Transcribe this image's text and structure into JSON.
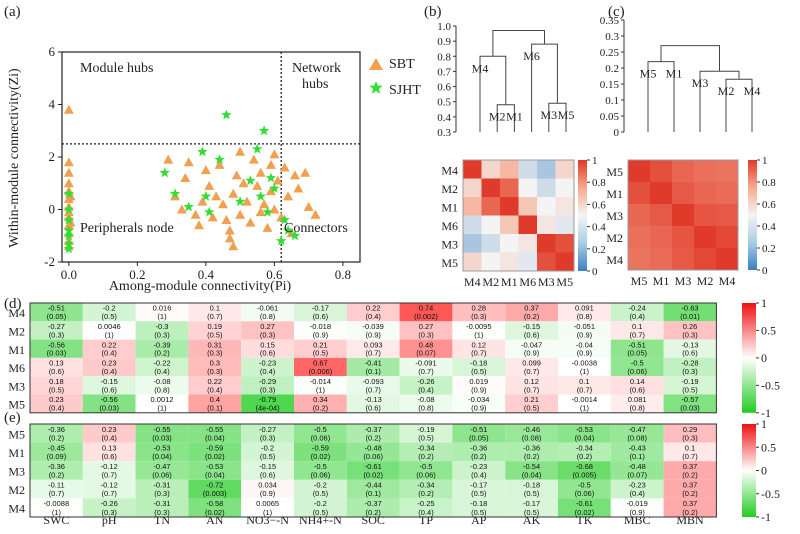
{
  "colors": {
    "sbt": "#f0a050",
    "sjht": "#33dd33",
    "line": "#222"
  },
  "icons": {
    "sbt": "triangle-marker",
    "sjht": "star-marker"
  },
  "chart_data": [
    {
      "panel": "(a)",
      "type": "scatter",
      "xlabel": "Among-module connectivity(Pi)",
      "ylabel": "Within-module connectivity(Zi)",
      "xlim": [
        -0.02,
        0.85
      ],
      "ylim": [
        -2.0,
        6.0
      ],
      "xticks": [
        "0.0",
        "0.2",
        "0.4",
        "0.6",
        "0.8"
      ],
      "yticks": [
        "-2",
        "0",
        "2",
        "4",
        "6"
      ],
      "thresholds": {
        "pi": 0.62,
        "zi": 2.5
      },
      "regions": {
        "module_hubs": "Module hubs",
        "network_hubs_1": "Network",
        "network_hubs_2": "hubs",
        "peripherals": "Peripherals node",
        "connectors": "Connectors"
      },
      "legend": {
        "position": "top-right",
        "entries": [
          "SBT",
          "SJHT"
        ]
      },
      "series": [
        {
          "name": "SBT",
          "points": [
            [
              0,
              3.8
            ],
            [
              0,
              1.8
            ],
            [
              0,
              1.4
            ],
            [
              0,
              1.0
            ],
            [
              0,
              0.7
            ],
            [
              0,
              0.4
            ],
            [
              0,
              0.1
            ],
            [
              0,
              -0.1
            ],
            [
              0,
              -0.3
            ],
            [
              0,
              -0.6
            ],
            [
              0,
              -0.9
            ],
            [
              0,
              -1.2
            ],
            [
              0,
              -1.4
            ],
            [
              0.005,
              0.5
            ],
            [
              0.005,
              -0.5
            ],
            [
              0.29,
              1.9
            ],
            [
              0.31,
              0.5
            ],
            [
              0.33,
              0.0
            ],
            [
              0.34,
              1.2
            ],
            [
              0.35,
              1.8
            ],
            [
              0.37,
              -0.2
            ],
            [
              0.38,
              -0.6
            ],
            [
              0.39,
              0.3
            ],
            [
              0.4,
              1.5
            ],
            [
              0.41,
              0.9
            ],
            [
              0.42,
              -0.3
            ],
            [
              0.43,
              0.5
            ],
            [
              0.44,
              1.7
            ],
            [
              0.45,
              0.2
            ],
            [
              0.46,
              -0.4
            ],
            [
              0.47,
              -0.8
            ],
            [
              0.47,
              -1.1
            ],
            [
              0.48,
              -1.4
            ],
            [
              0.48,
              0.6
            ],
            [
              0.49,
              1.3
            ],
            [
              0.5,
              2.2
            ],
            [
              0.5,
              -0.2
            ],
            [
              0.51,
              1.0
            ],
            [
              0.52,
              0.3
            ],
            [
              0.53,
              -0.5
            ],
            [
              0.54,
              1.9
            ],
            [
              0.55,
              0.9
            ],
            [
              0.56,
              -0.1
            ],
            [
              0.56,
              1.4
            ],
            [
              0.57,
              0.2
            ],
            [
              0.58,
              -0.7
            ],
            [
              0.59,
              0.7
            ],
            [
              0.59,
              1.7
            ],
            [
              0.6,
              0.0
            ],
            [
              0.6,
              2.1
            ],
            [
              0.61,
              1.1
            ],
            [
              0.62,
              -0.3
            ],
            [
              0.63,
              1.6
            ],
            [
              0.64,
              0.5
            ],
            [
              0.65,
              -0.9
            ],
            [
              0.66,
              1.3
            ],
            [
              0.67,
              0.8
            ],
            [
              0.69,
              1.4
            ],
            [
              0.7,
              0.1
            ],
            [
              0.72,
              -0.2
            ]
          ]
        },
        {
          "name": "SJHT",
          "points": [
            [
              0,
              0.6
            ],
            [
              0,
              0.0
            ],
            [
              0,
              -0.4
            ],
            [
              0,
              -0.8
            ],
            [
              0,
              -1.0
            ],
            [
              0,
              -1.3
            ],
            [
              0,
              -1.5
            ],
            [
              0.28,
              1.4
            ],
            [
              0.31,
              0.6
            ],
            [
              0.35,
              0.1
            ],
            [
              0.39,
              2.2
            ],
            [
              0.4,
              0.5
            ],
            [
              0.41,
              -0.1
            ],
            [
              0.44,
              1.9
            ],
            [
              0.46,
              3.6
            ],
            [
              0.5,
              0.3
            ],
            [
              0.53,
              1.1
            ],
            [
              0.55,
              2.3
            ],
            [
              0.56,
              0.5
            ],
            [
              0.57,
              3.0
            ],
            [
              0.58,
              -0.1
            ],
            [
              0.59,
              1.2
            ],
            [
              0.6,
              0.8
            ],
            [
              0.62,
              -1.2
            ],
            [
              0.63,
              -0.4
            ],
            [
              0.64,
              -0.8
            ],
            [
              0.66,
              -1.0
            ]
          ]
        }
      ]
    },
    {
      "panel": "(b)",
      "type": "dendrogram",
      "ylim": [
        0.3,
        1.0
      ],
      "yticks": [
        "0.3",
        "0.4",
        "0.5",
        "0.6",
        "0.7",
        "0.8",
        "0.9",
        "1.0"
      ],
      "leaves": [
        "M4",
        "M2",
        "M1",
        "M6",
        "M3",
        "M5"
      ],
      "merges": [
        [
          1,
          2,
          0.48
        ],
        [
          4,
          5,
          0.49
        ],
        [
          0,
          "12",
          0.8
        ],
        [
          3,
          "45",
          0.88
        ],
        [
          "012",
          "345",
          0.97
        ]
      ]
    },
    {
      "panel": "(c)",
      "type": "dendrogram",
      "ylim": [
        0.0,
        0.35
      ],
      "yticks": [
        "0",
        "0.05",
        "0.1",
        "0.15",
        "0.2",
        "0.25",
        "0.3",
        "0.35"
      ],
      "leaves": [
        "M5",
        "M1",
        "M3",
        "M2",
        "M4"
      ],
      "merges": [
        [
          0,
          1,
          0.22
        ],
        [
          3,
          4,
          0.165
        ],
        [
          2,
          "34",
          0.19
        ],
        [
          "01",
          "234",
          0.27
        ]
      ]
    },
    {
      "panel": "(b) heatmap",
      "type": "heatmap",
      "rows": [
        "M4",
        "M2",
        "M1",
        "M6",
        "M3",
        "M5"
      ],
      "cols": [
        "M4",
        "M2",
        "M1",
        "M6",
        "M3",
        "M5"
      ],
      "colorbar_ticks": [
        "1",
        "0.8",
        "0.6",
        "0.4",
        "0.2",
        "0"
      ],
      "values": [
        [
          1.0,
          0.6,
          0.7,
          0.4,
          0.3,
          0.6
        ],
        [
          0.6,
          1.0,
          0.9,
          0.5,
          0.4,
          0.5
        ],
        [
          0.7,
          0.9,
          1.0,
          0.65,
          0.5,
          0.55
        ],
        [
          0.4,
          0.5,
          0.65,
          1.0,
          0.55,
          0.45
        ],
        [
          0.3,
          0.4,
          0.5,
          0.55,
          1.0,
          0.95
        ],
        [
          0.6,
          0.5,
          0.55,
          0.45,
          0.95,
          1.0
        ]
      ]
    },
    {
      "panel": "(c) heatmap",
      "type": "heatmap",
      "rows": [
        "M5",
        "M1",
        "M3",
        "M2",
        "M4"
      ],
      "cols": [
        "M5",
        "M1",
        "M3",
        "M2",
        "M4"
      ],
      "colorbar_ticks": [
        "1",
        "0.8",
        "0.6",
        "0.4",
        "0.2",
        "0"
      ],
      "values": [
        [
          1.0,
          0.95,
          0.9,
          0.88,
          0.87
        ],
        [
          0.95,
          1.0,
          0.93,
          0.9,
          0.89
        ],
        [
          0.9,
          0.93,
          1.0,
          0.94,
          0.93
        ],
        [
          0.88,
          0.9,
          0.94,
          1.0,
          0.97
        ],
        [
          0.87,
          0.89,
          0.93,
          0.97,
          1.0
        ]
      ]
    },
    {
      "panel": "(d)",
      "type": "heatmap",
      "cols": [
        "SWC",
        "pH",
        "TN",
        "AN",
        "NO3−-N",
        "NH4+-N",
        "SOC",
        "TP",
        "AP",
        "AK",
        "TK",
        "MBC",
        "MBN"
      ],
      "rows": [
        "M4",
        "M2",
        "M1",
        "M6",
        "M3",
        "M5"
      ],
      "colorbar_ticks": [
        "1",
        "0.5",
        "0",
        "-0.5",
        "-1"
      ],
      "r": [
        [
          "-0.51",
          "-0.2",
          "0.016",
          "0.1",
          "-0.061",
          "-0.17",
          "0.22",
          "0.74",
          "0.28",
          "0.37",
          "0.091",
          "-0.24",
          "-0.63"
        ],
        [
          "-0.27",
          "0.0046",
          "-0.3",
          "0.19",
          "0.27",
          "-0.018",
          "-0.039",
          "0.27",
          "-0.0095",
          "-0.15",
          "-0.051",
          "0.1",
          "0.26"
        ],
        [
          "-0.56",
          "0.22",
          "-0.39",
          "0.31",
          "0.15",
          "0.21",
          "0.093",
          "0.48",
          "0.12",
          "-0.047",
          "-0.04",
          "-0.51",
          "-0.13"
        ],
        [
          "0.13",
          "0.23",
          "-0.22",
          "0.3",
          "-0.23",
          "0.67",
          "-0.41",
          "-0.091",
          "-0.18",
          "0.099",
          "-0.0038",
          "-0.5",
          "-0.28"
        ],
        [
          "0.18",
          "-0.15",
          "-0.08",
          "0.22",
          "-0.29",
          "-0.014",
          "-0.093",
          "-0.26",
          "0.019",
          "0.12",
          "0.1",
          "0.14",
          "-0.19"
        ],
        [
          "0.23",
          "-0.56",
          "0.0012",
          "0.4",
          "-0.79",
          "0.34",
          "-0.13",
          "-0.08",
          "-0.034",
          "0.21",
          "-0.0014",
          "0.081",
          "-0.57"
        ]
      ],
      "p": [
        [
          "(0.05)",
          "(0.5)",
          "(1)",
          "(0.7)",
          "(0.8)",
          "(0.6)",
          "(0.4)",
          "(0.002)",
          "(0.3)",
          "(0.2)",
          "(0.8)",
          "(0.4)",
          "(0.01)"
        ],
        [
          "(0.3)",
          "(1)",
          "(0.3)",
          "(0.5)",
          "(0.3)",
          "(0.9)",
          "(0.9)",
          "(0.3)",
          "(1)",
          "(0.6)",
          "(0.9)",
          "(0.7)",
          "(0.3)"
        ],
        [
          "(0.03)",
          "(0.4)",
          "(0.2)",
          "(0.3)",
          "(0.6)",
          "(0.5)",
          "(0.7)",
          "(0.07)",
          "(0.7)",
          "(0.9)",
          "(0.9)",
          "(0.05)",
          "(0.6)"
        ],
        [
          "(0.6)",
          "(0.4)",
          "(0.4)",
          "(0.3)",
          "(0.4)",
          "(0.006)",
          "(0.1)",
          "(0.7)",
          "(0.5)",
          "(0.7)",
          "(1)",
          "(0.06)",
          "(0.3)"
        ],
        [
          "(0.5)",
          "(0.6)",
          "(0.8)",
          "(0.4)",
          "(0.3)",
          "(1)",
          "(0.7)",
          "(0.4)",
          "(0.9)",
          "(0.7)",
          "(0.7)",
          "(0.6)",
          "(0.5)"
        ],
        [
          "(0.4)",
          "(0.03)",
          "(1)",
          "(0.1)",
          "(4e-04)",
          "(0.2)",
          "(0.6)",
          "(0.8)",
          "(0.9)",
          "(0.5)",
          "(1)",
          "(0.8)",
          "(0.03)"
        ]
      ]
    },
    {
      "panel": "(e)",
      "type": "heatmap",
      "cols": [
        "SWC",
        "pH",
        "TN",
        "AN",
        "NO3−-N",
        "NH4+-N",
        "SOC",
        "TP",
        "AP",
        "AK",
        "TK",
        "MBC",
        "MBN"
      ],
      "rows": [
        "M5",
        "M1",
        "M3",
        "M2",
        "M4"
      ],
      "colorbar_ticks": [
        "1",
        "0.5",
        "0",
        "-0.5",
        "-1"
      ],
      "r": [
        [
          "-0.36",
          "0.23",
          "-0.55",
          "-0.55",
          "-0.27",
          "-0.5",
          "-0.37",
          "-0.19",
          "-0.51",
          "-0.46",
          "-0.53",
          "-0.47",
          "0.29"
        ],
        [
          "-0.45",
          "0.13",
          "-0.53",
          "-0.59",
          "-0.2",
          "-0.59",
          "-0.48",
          "-0.34",
          "-0.36",
          "-0.36",
          "-0.34",
          "-0.43",
          "0.1"
        ],
        [
          "-0.36",
          "-0.12",
          "-0.47",
          "-0.53",
          "-0.15",
          "-0.5",
          "-0.61",
          "-0.5",
          "-0.23",
          "-0.54",
          "-0.68",
          "-0.48",
          "0.37"
        ],
        [
          "-0.11",
          "-0.12",
          "-0.31",
          "-0.72",
          "0.034",
          "-0.2",
          "-0.44",
          "-0.34",
          "-0.17",
          "-0.18",
          "-0.5",
          "-0.23",
          "0.37"
        ],
        [
          "-0.0088",
          "-0.26",
          "-0.31",
          "-0.58",
          "0.0065",
          "-0.2",
          "-0.37",
          "-0.25",
          "-0.18",
          "-0.17",
          "-0.61",
          "-0.019",
          "0.37"
        ]
      ],
      "p": [
        [
          "(0.2)",
          "(0.4)",
          "(0.03)",
          "(0.04)",
          "(0.3)",
          "(0.06)",
          "(0.2)",
          "(0.5)",
          "(0.05)",
          "(0.08)",
          "(0.04)",
          "(0.08)",
          "(0.3)"
        ],
        [
          "(0.09)",
          "(0.6)",
          "(0.04)",
          "(0.02)",
          "(0.5)",
          "(0.02)",
          "(0.06)",
          "(0.2)",
          "(0.2)",
          "(0.2)",
          "(0.2)",
          "(0.1)",
          "(0.7)"
        ],
        [
          "(0.2)",
          "(0.7)",
          "(0.06)",
          "(0.04)",
          "(0.6)",
          "(0.06)",
          "(0.02)",
          "(0.06)",
          "(0.4)",
          "(0.04)",
          "(0.005)",
          "(0.07)",
          "(0.2)"
        ],
        [
          "(0.7)",
          "(0.7)",
          "(0.3)",
          "(0.003)",
          "(0.9)",
          "(0.5)",
          "(0.1)",
          "(0.2)",
          "(0.5)",
          "(0.5)",
          "(0.06)",
          "(0.4)",
          "(0.2)"
        ],
        [
          "(1)",
          "(0.3)",
          "(0.3)",
          "(0.02)",
          "(1)",
          "(0.5)",
          "(0.2)",
          "(0.4)",
          "(0.5)",
          "(0.5)",
          "(0.02)",
          "(0.9)",
          "(0.2)"
        ]
      ]
    }
  ]
}
